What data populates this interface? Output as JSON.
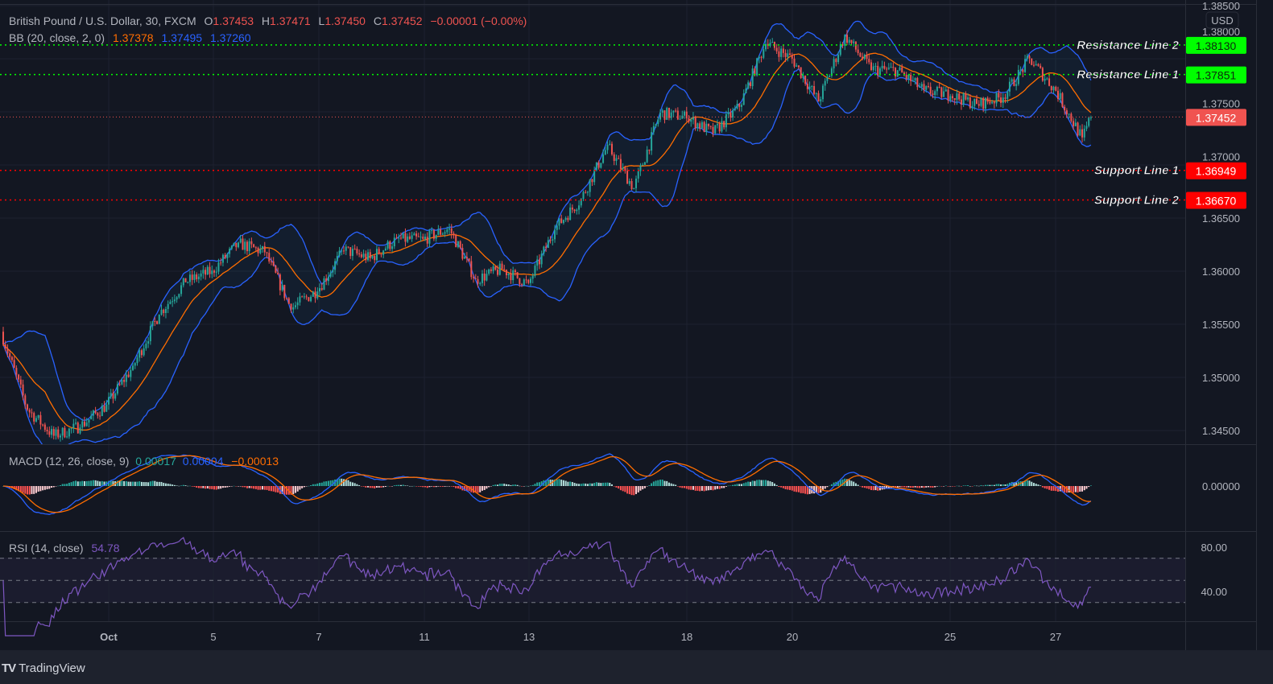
{
  "legend": {
    "symbol": "British Pound / U.S. Dollar, 30, FXCM",
    "open_label": "O",
    "open": "1.37453",
    "high_label": "H",
    "high": "1.37471",
    "low_label": "L",
    "low": "1.37450",
    "close_label": "C",
    "close": "1.37452",
    "change": "−0.00001 (−0.00%)",
    "bb_title": "BB (20, close, 2, 0)",
    "bb_basis": "1.37378",
    "bb_upper": "1.37495",
    "bb_lower": "1.37260"
  },
  "macd_legend": {
    "title": "MACD (12, 26, close, 9)",
    "hist": "0.00017",
    "macd": "0.00004",
    "signal": "−0.00013"
  },
  "rsi_legend": {
    "title": "RSI (14, close)",
    "value": "54.78"
  },
  "price_axis": {
    "currency": "USD",
    "ticks": [
      "1.38500",
      "1.38000",
      "1.37500",
      "1.37000",
      "1.36500",
      "1.36000",
      "1.35500",
      "1.35000",
      "1.34500"
    ]
  },
  "macd_axis": {
    "ticks": [
      "0.00000"
    ]
  },
  "rsi_axis": {
    "ticks": [
      "80.00",
      "40.00"
    ]
  },
  "time_axis": {
    "ticks": [
      "Oct",
      "5",
      "7",
      "11",
      "13",
      "18",
      "20",
      "25",
      "27"
    ]
  },
  "levels": [
    {
      "name": "Resistance Line 2",
      "price": "1.38130",
      "color": "#00ff00"
    },
    {
      "name": "Resistance Line 1",
      "price": "1.37851",
      "color": "#00ff00"
    },
    {
      "name": "Support Line 1",
      "price": "1.36949",
      "color": "#ff0000"
    },
    {
      "name": "Support Line 2",
      "price": "1.36670",
      "color": "#ff0000"
    }
  ],
  "last_price": {
    "price": "1.37452",
    "color": "#f05350"
  },
  "footer": {
    "brand": "TradingView"
  },
  "colors": {
    "up": "#26a69a",
    "down": "#ef5350",
    "bb_band": "#2962ff",
    "bb_basis": "#ff6d00",
    "macd": "#2962ff",
    "signal": "#ff6d00",
    "rsi": "#7e57c2",
    "background": "#131722"
  },
  "chart_data": {
    "type": "candlestick",
    "symbol": "GBPUSD",
    "interval": "30",
    "x": [
      "Sep 29 00:00",
      "Sep 29 12:00",
      "Sep 30 00:00",
      "Sep 30 12:00",
      "Oct 1 00:00",
      "Oct 1 12:00",
      "Oct 4 00:00",
      "Oct 4 12:00",
      "Oct 5 00:00",
      "Oct 5 12:00",
      "Oct 6 00:00",
      "Oct 6 12:00",
      "Oct 7 00:00",
      "Oct 7 12:00",
      "Oct 8 00:00",
      "Oct 8 12:00",
      "Oct 11 00:00",
      "Oct 11 12:00",
      "Oct 12 00:00",
      "Oct 12 12:00",
      "Oct 13 00:00",
      "Oct 13 12:00",
      "Oct 14 00:00",
      "Oct 14 12:00",
      "Oct 15 00:00",
      "Oct 15 12:00",
      "Oct 18 00:00",
      "Oct 18 12:00",
      "Oct 19 00:00",
      "Oct 19 12:00",
      "Oct 20 00:00",
      "Oct 20 12:00",
      "Oct 21 00:00",
      "Oct 21 12:00",
      "Oct 22 00:00",
      "Oct 22 12:00",
      "Oct 25 00:00",
      "Oct 25 12:00",
      "Oct 26 00:00",
      "Oct 26 12:00",
      "Oct 27 00:00",
      "Oct 27 12:00",
      "Oct 28 00:00"
    ],
    "close": [
      1.3543,
      1.347,
      1.3445,
      1.3454,
      1.3474,
      1.351,
      1.356,
      1.359,
      1.36,
      1.3626,
      1.3618,
      1.3565,
      1.3582,
      1.362,
      1.3612,
      1.363,
      1.363,
      1.364,
      1.3592,
      1.3602,
      1.3588,
      1.364,
      1.3668,
      1.3718,
      1.3678,
      1.3749,
      1.3745,
      1.373,
      1.3755,
      1.3815,
      1.38,
      1.376,
      1.3822,
      1.379,
      1.3789,
      1.377,
      1.3766,
      1.3757,
      1.3764,
      1.38,
      1.377,
      1.3725,
      1.3745
    ],
    "last_close": 1.37452,
    "y_range": [
      1.3435,
      1.3855
    ],
    "indicators": [
      "BB (20, close, 2, 0)",
      "MACD (12, 26, close, 9)",
      "RSI (14, close)"
    ],
    "rsi_bands": [
      70,
      50,
      30
    ],
    "grid": true
  }
}
